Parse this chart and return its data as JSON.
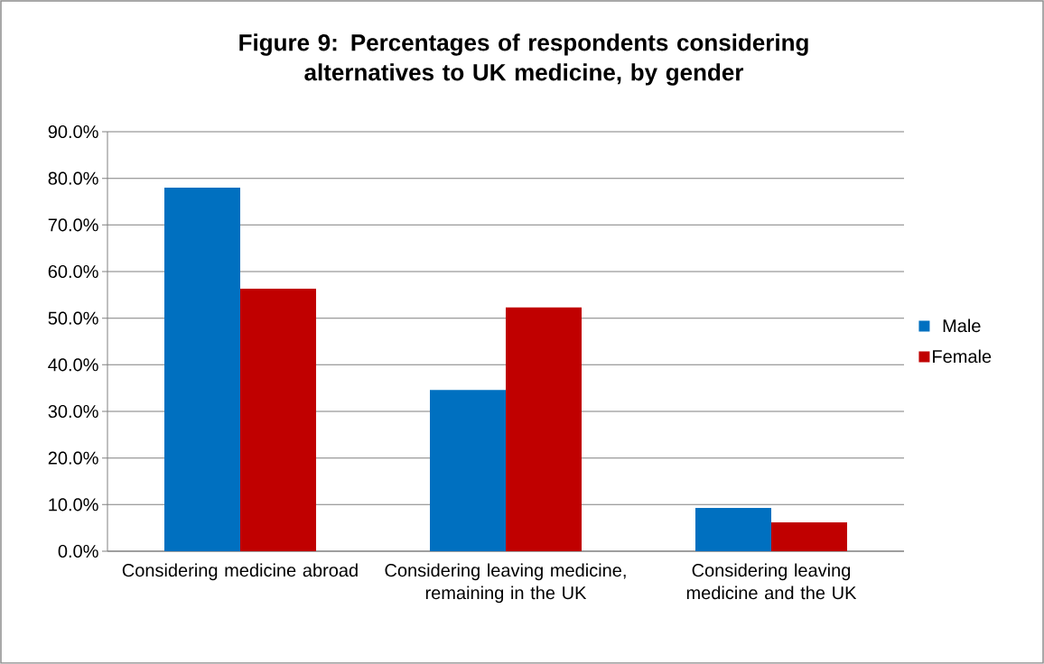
{
  "chart_data": {
    "type": "bar",
    "title": "Figure 9: Percentages of respondents considering alternatives to UK medicine, by gender",
    "categories": [
      "Considering medicine abroad",
      "Considering leaving medicine, remaining in the UK",
      "Considering leaving medicine and the UK"
    ],
    "series": [
      {
        "name": "Male",
        "color": "#0070c0",
        "values": [
          78.0,
          34.6,
          9.3
        ]
      },
      {
        "name": "Female",
        "color": "#c00000",
        "values": [
          56.3,
          52.3,
          6.2
        ]
      }
    ],
    "ylim": [
      0,
      90
    ],
    "yticks": [
      {
        "value": 0,
        "label": "0.0%"
      },
      {
        "value": 10,
        "label": "10.0%"
      },
      {
        "value": 20,
        "label": "20.0%"
      },
      {
        "value": 30,
        "label": "30.0%"
      },
      {
        "value": 40,
        "label": "40.0%"
      },
      {
        "value": 50,
        "label": "50.0%"
      },
      {
        "value": 60,
        "label": "60.0%"
      },
      {
        "value": 70,
        "label": "70.0%"
      },
      {
        "value": 80,
        "label": "80.0%"
      },
      {
        "value": 90,
        "label": "90.0%"
      }
    ],
    "grid": "y",
    "legend": "right"
  }
}
